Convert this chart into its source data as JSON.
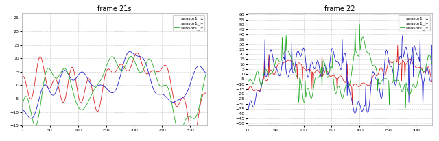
{
  "left_title": "frame 21s",
  "right_title": "frame 22",
  "legend_labels": [
    "sensor1_lx",
    "sensor1_ly",
    "sensor1_lz"
  ],
  "colors": [
    "#dd2222",
    "#2222cc",
    "#22aa22"
  ],
  "left_ylim": [
    -15,
    27
  ],
  "right_ylim": [
    -52,
    62
  ],
  "xlim": [
    0,
    330
  ],
  "n_points": 330,
  "title_fontsize": 7,
  "legend_fontsize": 4.5,
  "tick_fontsize": 4.5,
  "linewidth": 0.6,
  "background": "#ffffff",
  "grid_color": "#bbbbbb",
  "grid_style": "--",
  "grid_alpha": 0.8,
  "left_ytick_step": 5,
  "right_ytick_step": 5
}
